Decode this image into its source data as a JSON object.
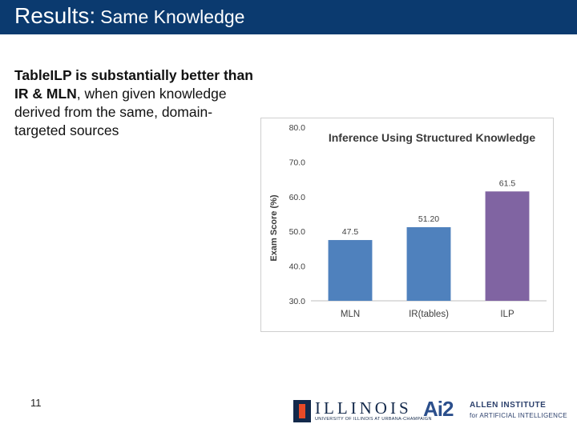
{
  "slide": {
    "title_main": "Results:",
    "title_sub": "Same Knowledge",
    "body": {
      "bold_part1": "TableILP is substantially better than IR & MLN",
      "rest": ", when given knowledge derived from the same, domain-targeted sources"
    },
    "page_number": "11"
  },
  "logos": {
    "illinois_word": "ILLINOIS",
    "illinois_small": "UNIVERSITY OF ILLINOIS AT URBANA-CHAMPAIGN",
    "ai2_mark": "Ai2",
    "ai2_line1": "ALLEN INSTITUTE",
    "ai2_line2": "for ARTIFICIAL INTELLIGENCE"
  },
  "chart_data": {
    "type": "bar",
    "title": "Inference Using Structured Knowledge",
    "ylabel": "Exam Score (%)",
    "xlabel": "",
    "categories": [
      "MLN",
      "IR(tables)",
      "ILP"
    ],
    "values": [
      47.5,
      51.2,
      61.5
    ],
    "value_labels": [
      "47.5",
      "51.20",
      "61.5"
    ],
    "ylim": [
      30,
      80
    ],
    "yticks": [
      "30.0",
      "40.0",
      "50.0",
      "60.0",
      "70.0",
      "80.0"
    ],
    "colors": [
      "#4f81bd",
      "#4f81bd",
      "#8064a2"
    ],
    "grid": false,
    "legend": "none"
  }
}
